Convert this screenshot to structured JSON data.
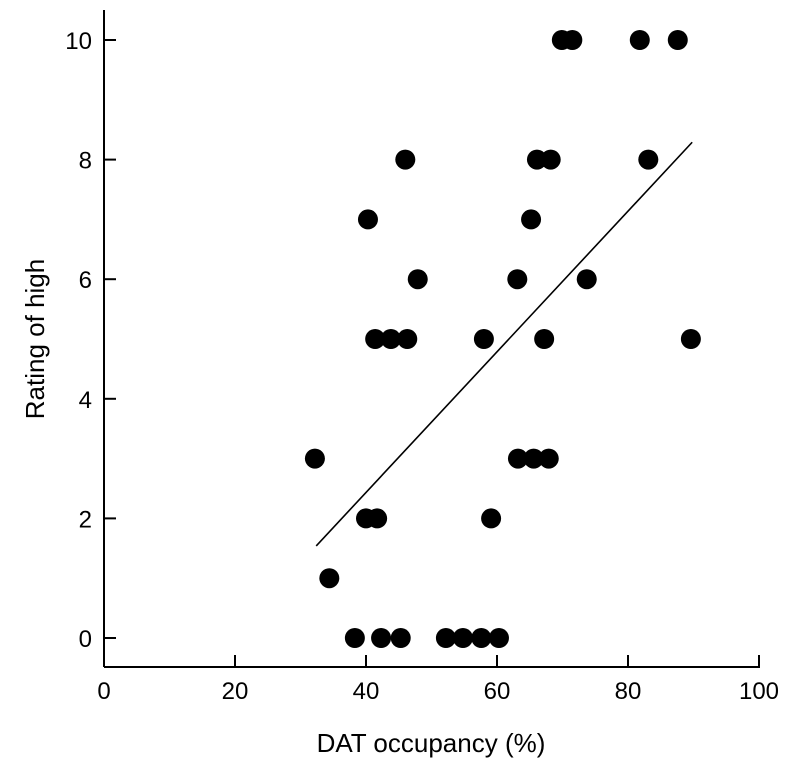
{
  "chart_data": {
    "type": "scatter",
    "title": "",
    "xlabel": "DAT occupancy (%)",
    "ylabel": "Rating of high",
    "xlim": [
      0,
      100
    ],
    "ylim": [
      0,
      10
    ],
    "xticks": [
      "0",
      "20",
      "40",
      "60",
      "80",
      "100"
    ],
    "yticks": [
      "0",
      "2",
      "4",
      "6",
      "8",
      "10"
    ],
    "grid": false,
    "points": [
      [
        69.9,
        10
      ],
      [
        71.5,
        10
      ],
      [
        81.8,
        10
      ],
      [
        87.6,
        10
      ],
      [
        46.0,
        8
      ],
      [
        66.1,
        8
      ],
      [
        68.2,
        8
      ],
      [
        83.1,
        8
      ],
      [
        40.3,
        7
      ],
      [
        65.2,
        7
      ],
      [
        47.9,
        6
      ],
      [
        63.1,
        6
      ],
      [
        73.7,
        6
      ],
      [
        41.4,
        5
      ],
      [
        43.8,
        5
      ],
      [
        46.3,
        5
      ],
      [
        58.0,
        5
      ],
      [
        67.2,
        5
      ],
      [
        89.6,
        5
      ],
      [
        32.2,
        3
      ],
      [
        63.2,
        3
      ],
      [
        65.6,
        3
      ],
      [
        67.9,
        3
      ],
      [
        40.0,
        2
      ],
      [
        41.7,
        2
      ],
      [
        59.1,
        2
      ],
      [
        34.4,
        1
      ],
      [
        38.3,
        0
      ],
      [
        42.3,
        0
      ],
      [
        45.3,
        0
      ],
      [
        52.2,
        0
      ],
      [
        54.8,
        0
      ],
      [
        57.6,
        0
      ],
      [
        60.3,
        0
      ]
    ],
    "regression_line": [
      [
        32.4,
        1.54
      ],
      [
        89.8,
        8.29
      ]
    ],
    "marker_color": "#000000"
  }
}
